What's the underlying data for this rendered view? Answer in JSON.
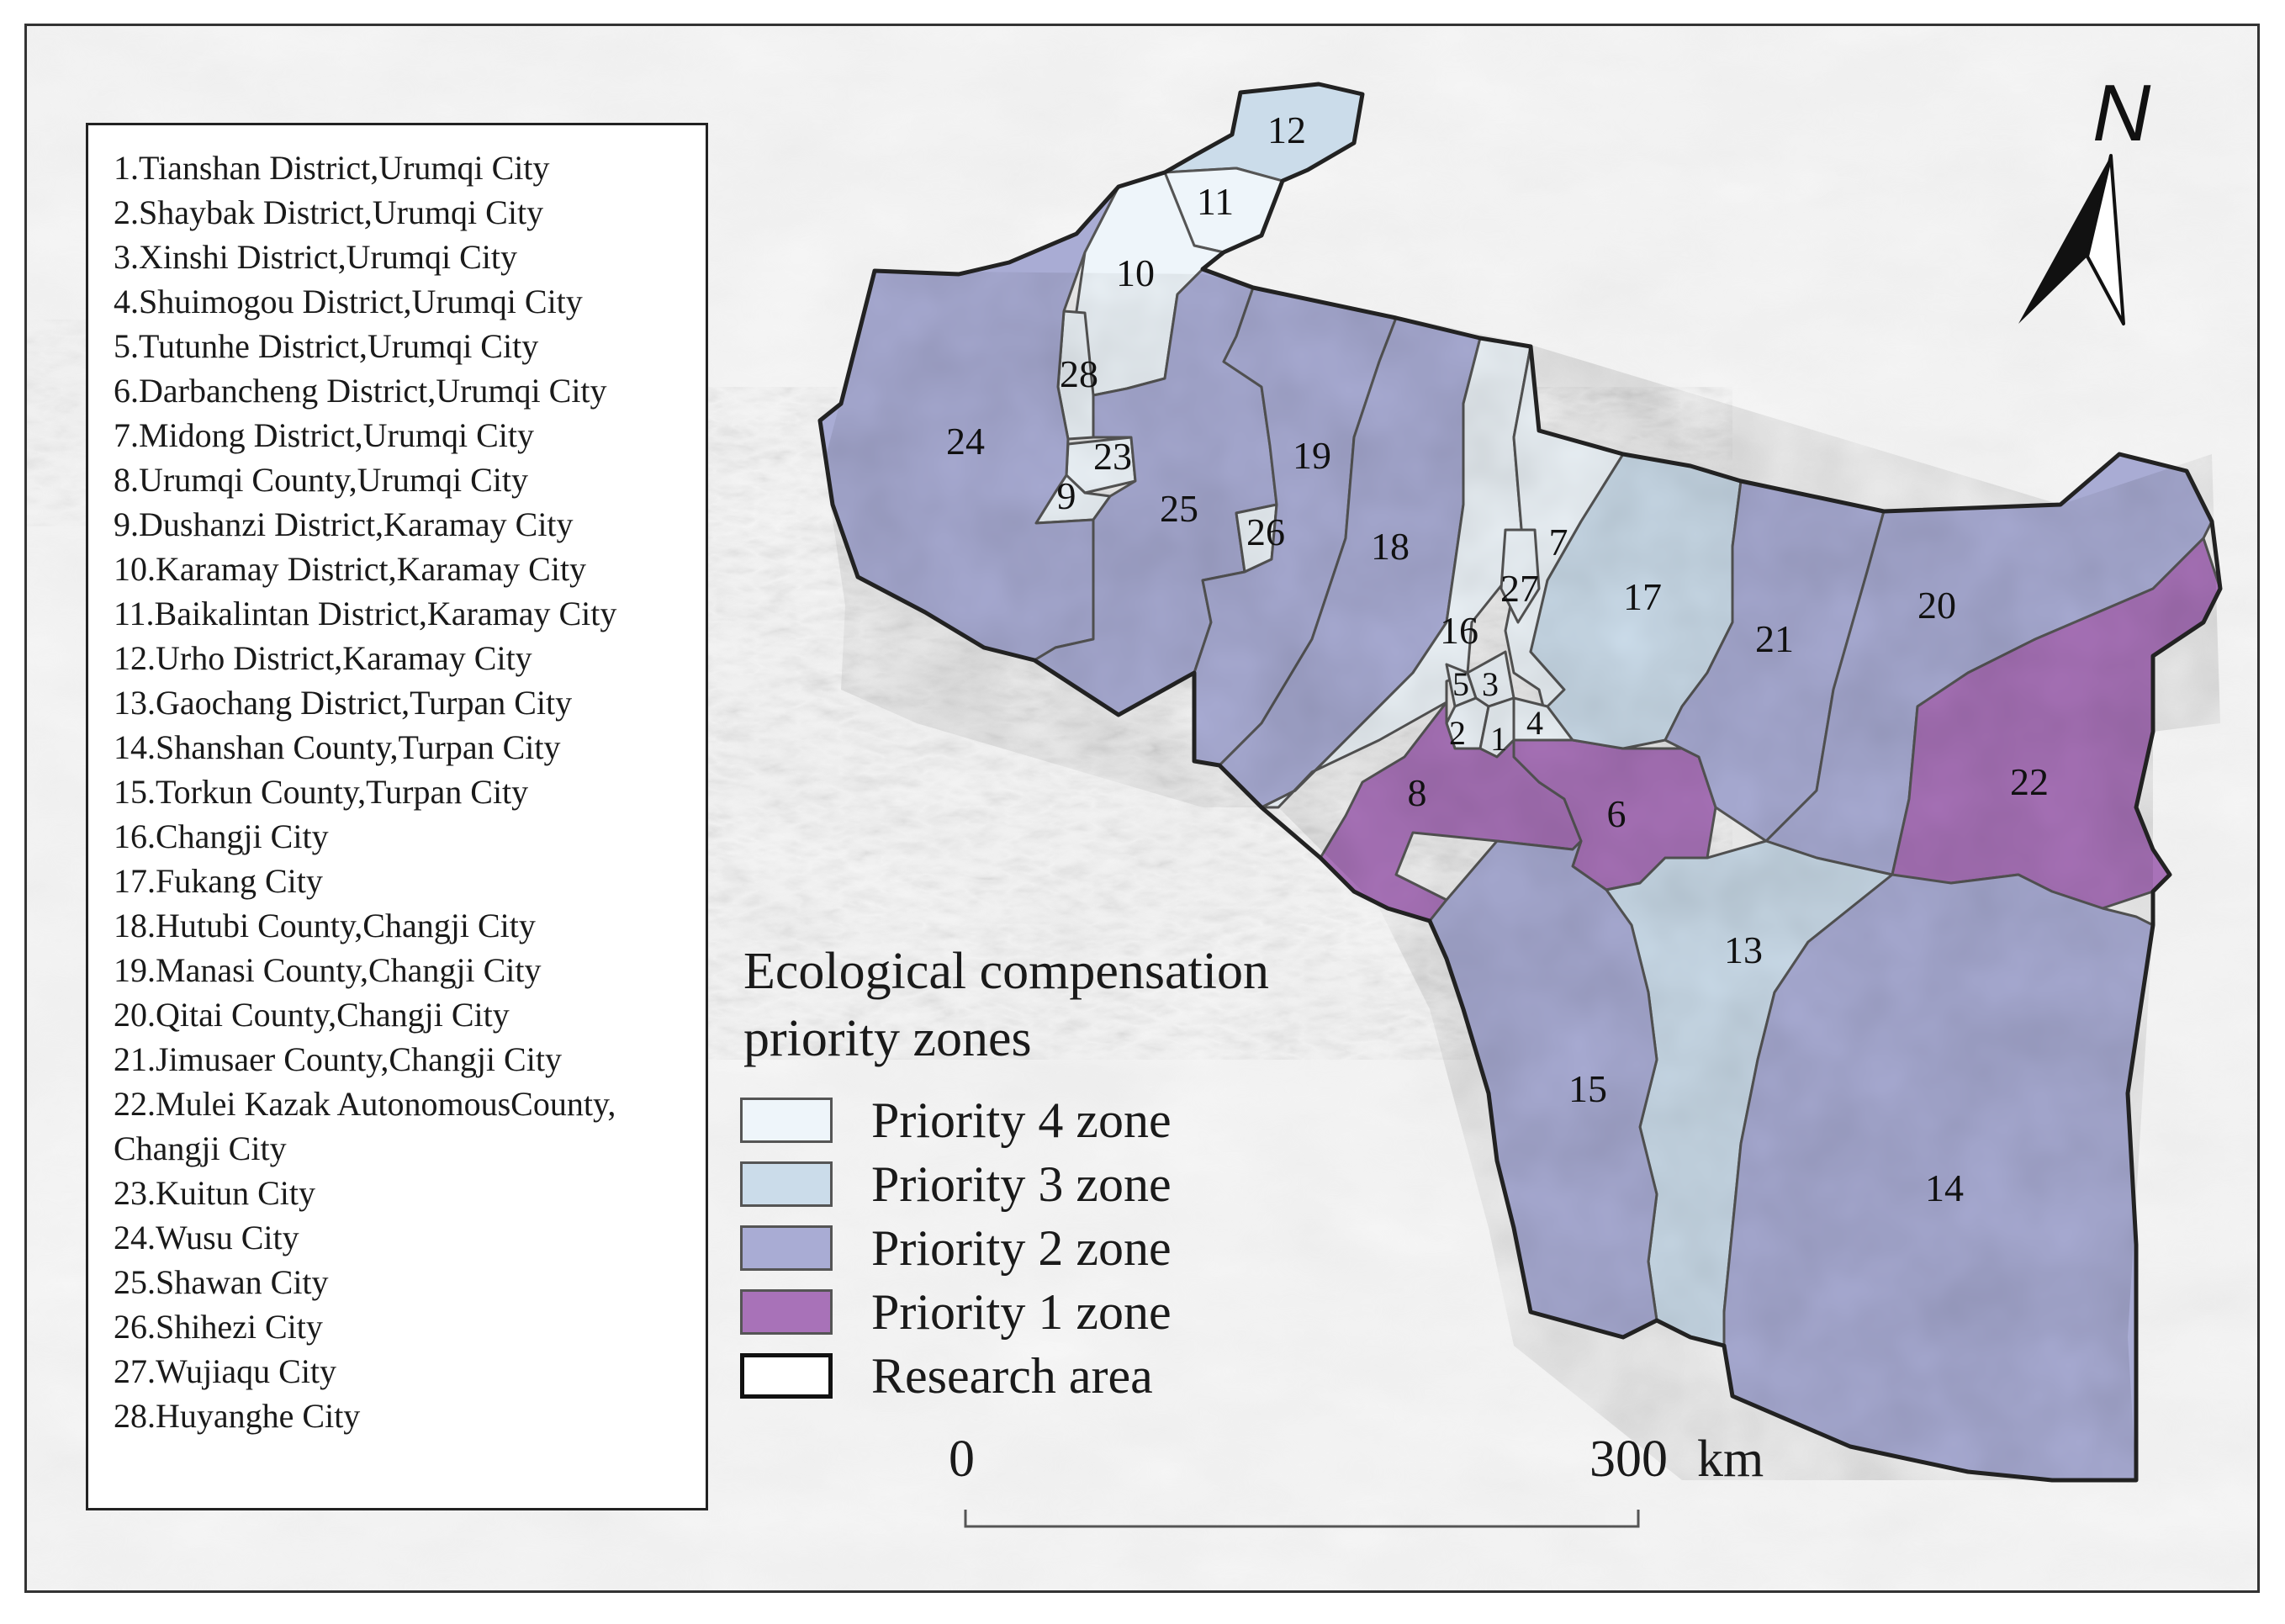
{
  "districts": [
    {
      "num": "12",
      "name": "Urho District,Karamay City",
      "priority": 3
    },
    {
      "num": "11",
      "name": "Baikalintan District,Karamay City",
      "priority": 4
    },
    {
      "num": "10",
      "name": "Karamay District,Karamay City",
      "priority": 4
    },
    {
      "num": "28",
      "name": "Huyanghe City",
      "priority": 4
    },
    {
      "num": "23",
      "name": "Kuitun City",
      "priority": 4
    },
    {
      "num": "9",
      "name": "Dushanzi District,Karamay City",
      "priority": 4
    },
    {
      "num": "24",
      "name": "Wusu City",
      "priority": 2
    },
    {
      "num": "25",
      "name": "Shawan City",
      "priority": 2
    },
    {
      "num": "26",
      "name": "Shihezi City",
      "priority": 4
    },
    {
      "num": "19",
      "name": "Manasi County,Changji City",
      "priority": 2
    },
    {
      "num": "18",
      "name": "Hutubi County,Changji City",
      "priority": 2
    },
    {
      "num": "16",
      "name": "Changji City",
      "priority": 4
    },
    {
      "num": "7",
      "name": "Midong District,Urumqi City",
      "priority": 4
    },
    {
      "num": "27",
      "name": "Wujiaqu City",
      "priority": 4
    },
    {
      "num": "17",
      "name": "Fukang City",
      "priority": 3
    },
    {
      "num": "21",
      "name": "Jimusaer County,Changji City",
      "priority": 2
    },
    {
      "num": "20",
      "name": "Qitai County,Changji City",
      "priority": 2
    },
    {
      "num": "22",
      "name": "Mulei Kazak AutonomousCounty, Changji City",
      "priority": 1
    },
    {
      "num": "5",
      "name": "Tutunhe District,Urumqi City",
      "priority": 4
    },
    {
      "num": "3",
      "name": "Xinshi District,Urumqi City",
      "priority": 4
    },
    {
      "num": "2",
      "name": "Shaybak District,Urumqi City",
      "priority": 4
    },
    {
      "num": "1",
      "name": "Tianshan District,Urumqi City",
      "priority": 4
    },
    {
      "num": "4",
      "name": "Shuimogou District,Urumqi City",
      "priority": 4
    },
    {
      "num": "8",
      "name": "Urumqi County,Urumqi City",
      "priority": 1
    },
    {
      "num": "6",
      "name": "Darbancheng District,Urumqi City",
      "priority": 1
    },
    {
      "num": "13",
      "name": "Gaochang District,Turpan City",
      "priority": 3
    },
    {
      "num": "15",
      "name": "Torkun County,Turpan City",
      "priority": 2
    },
    {
      "num": "14",
      "name": "Shanshan County,Turpan City",
      "priority": 2
    }
  ],
  "district_list": [
    "1.Tianshan District,Urumqi City",
    "2.Shaybak District,Urumqi City",
    "3.Xinshi District,Urumqi City",
    "4.Shuimogou District,Urumqi City",
    "5.Tutunhe District,Urumqi City",
    "6.Darbancheng District,Urumqi City",
    "7.Midong District,Urumqi City",
    "8.Urumqi County,Urumqi City",
    "9.Dushanzi District,Karamay City",
    "10.Karamay District,Karamay City",
    "11.Baikalintan District,Karamay City",
    "12.Urho District,Karamay City",
    "13.Gaochang District,Turpan City",
    "14.Shanshan County,Turpan City",
    "15.Torkun County,Turpan City",
    "16.Changji City",
    "17.Fukang City",
    "18.Hutubi County,Changji City",
    "19.Manasi County,Changji City",
    "20.Qitai County,Changji City",
    "21.Jimusaer County,Changji City",
    "22.Mulei Kazak AutonomousCounty, Changji City",
    "23.Kuitun City",
    "24.Wusu City",
    "25.Shawan City",
    "26.Shihezi City",
    "27.Wujiaqu City",
    "28.Huyanghe City"
  ],
  "legend": {
    "title": "Ecological compensation priority zones",
    "items": [
      {
        "label": "Priority 4 zone",
        "color": "#eef5fa"
      },
      {
        "label": "Priority 3 zone",
        "color": "#cbdcea"
      },
      {
        "label": "Priority 2 zone",
        "color": "#a9acd4"
      },
      {
        "label": "Priority 1 zone",
        "color": "#a872b8"
      },
      {
        "label": "Research area",
        "color": "#ffffff"
      }
    ]
  },
  "scale_bar": {
    "start_label": "0",
    "end_label": "300",
    "unit": "km"
  },
  "north_arrow": {
    "label": "N"
  }
}
